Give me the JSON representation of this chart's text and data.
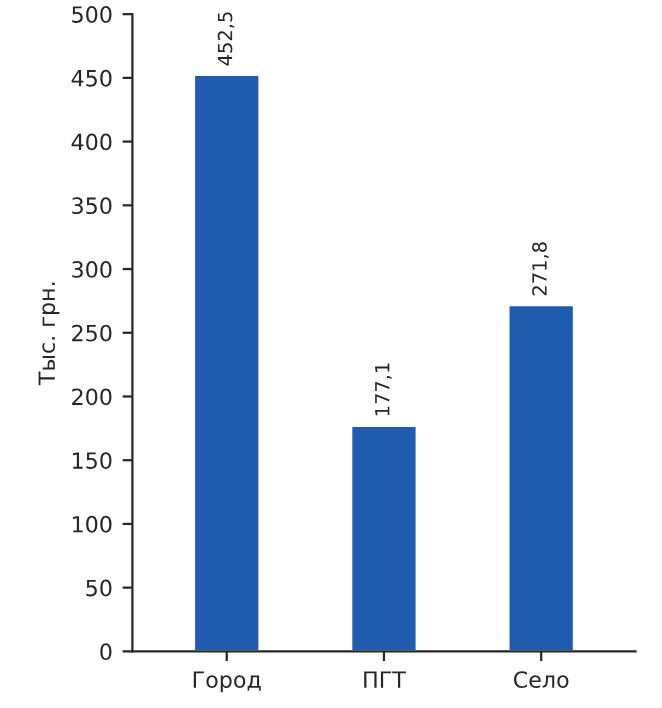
{
  "chart_data": {
    "type": "bar",
    "ylabel": "Тыс. грн.",
    "categories": [
      "Город",
      "ПГТ",
      "Село"
    ],
    "values": [
      452.5,
      177.1,
      271.8
    ],
    "value_labels": [
      "452,5",
      "177,1",
      "271,8"
    ],
    "color": "#1f5cb0",
    "ylim": [
      0,
      500
    ],
    "yticks": [
      0,
      50,
      100,
      150,
      200,
      250,
      300,
      350,
      400,
      450,
      500
    ],
    "grid": false,
    "legend": false
  }
}
